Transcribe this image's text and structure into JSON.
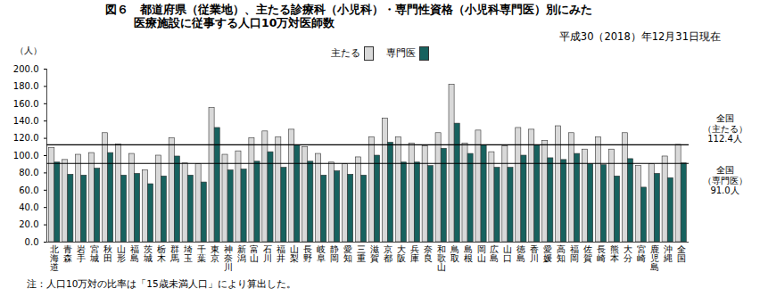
{
  "chart_data": {
    "type": "bar",
    "title": [
      "図６　都道府県（従業地）、主たる診療科（小児科）・専門性資格（小児科専門医）別にみた",
      "医療施設に従事する人口10万対医師数"
    ],
    "subtitle": "平成30（2018）年12月31日現在",
    "y_label": "（人）",
    "categories": [
      "北海道",
      "青森",
      "岩手",
      "宮城",
      "秋田",
      "山形",
      "福島",
      "茨城",
      "栃木",
      "群馬",
      "埼玉",
      "千葉",
      "東京",
      "神奈川",
      "新潟",
      "富山",
      "石川",
      "福井",
      "山梨",
      "長野",
      "岐阜",
      "静岡",
      "愛知",
      "三重",
      "滋賀",
      "京都",
      "大阪",
      "兵庫",
      "奈良",
      "和歌山",
      "鳥取",
      "島根",
      "岡山",
      "広島",
      "山口",
      "徳島",
      "香川",
      "愛媛",
      "高知",
      "福岡",
      "佐賀",
      "長崎",
      "熊本",
      "大分",
      "宮崎",
      "鹿児島",
      "沖縄",
      "全国"
    ],
    "series": [
      {
        "name": "主たる",
        "color": "#d9d9d9",
        "values": [
          109,
          95,
          101,
          103,
          126,
          113,
          102,
          83,
          100,
          120,
          91,
          90,
          155,
          101,
          105,
          120,
          128,
          121,
          130,
          110,
          102,
          92,
          90,
          98,
          121,
          143,
          121,
          114,
          111,
          126,
          182,
          114,
          129,
          104,
          111,
          132,
          130,
          117,
          134,
          126,
          107,
          121,
          107,
          126,
          88,
          90,
          99,
          112.4
        ]
      },
      {
        "name": "専門医",
        "color": "#17625f",
        "values": [
          92,
          78,
          77,
          85,
          103,
          77,
          79,
          67,
          76,
          99,
          77,
          69,
          132,
          83,
          84,
          93,
          104,
          86,
          112,
          93,
          77,
          82,
          78,
          77,
          100,
          115,
          92,
          92,
          88,
          108,
          137,
          102,
          112,
          86,
          86,
          100,
          112,
          97,
          95,
          102,
          90,
          89,
          76,
          96,
          63,
          79,
          74,
          91.0
        ]
      }
    ],
    "ylim": [
      0,
      200
    ],
    "yticks": [
      {
        "value": 0,
        "label": "0.0"
      },
      {
        "value": 20,
        "label": "20.0"
      },
      {
        "value": 40,
        "label": "40.0"
      },
      {
        "value": 60,
        "label": "60.0"
      },
      {
        "value": 80,
        "label": "80.0"
      },
      {
        "value": 100,
        "label": "100.0"
      },
      {
        "value": 120,
        "label": "120.0"
      },
      {
        "value": 140,
        "label": "140.0"
      },
      {
        "value": 160,
        "label": "160.0"
      },
      {
        "value": 180,
        "label": "180.0"
      },
      {
        "value": 200,
        "label": "200.0"
      }
    ],
    "grid": false,
    "legend": "top",
    "reference_lines": [
      {
        "value": 112.4,
        "label": [
          "全国",
          "（主たる）",
          "112.4人"
        ]
      },
      {
        "value": 91.0,
        "label": [
          "全国",
          "（専門医）",
          "91.0人"
        ]
      }
    ],
    "note": "注：人口10万対の比率は「15歳未満人口」により算出した。"
  }
}
